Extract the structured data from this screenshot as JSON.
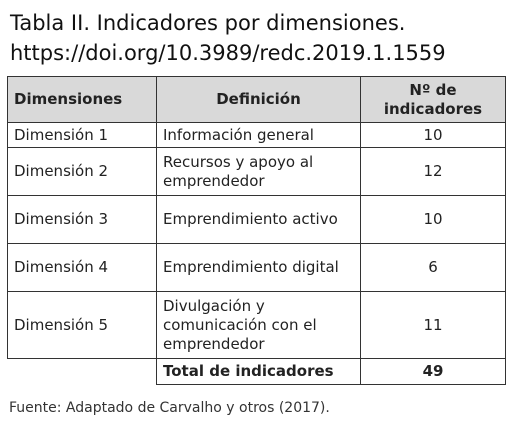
{
  "title": {
    "line1": "Tabla II. Indicadores por dimensiones.",
    "line2": "https://doi.org/10.3989/redc.2019.1.1559"
  },
  "table": {
    "headers": {
      "dimension": "Dimensiones",
      "definition": "Definición",
      "count_line1": "Nº de",
      "count_line2": "indicadores"
    },
    "rows": [
      {
        "dimension": "Dimensión 1",
        "definition": "Información general",
        "count": "10"
      },
      {
        "dimension": "Dimensión 2",
        "definition": "Recursos y apoyo al emprendedor",
        "count": "12"
      },
      {
        "dimension": "Dimensión 3",
        "definition": "Emprendimiento activo",
        "count": "10"
      },
      {
        "dimension": "Dimensión 4",
        "definition": "Emprendimiento digital",
        "count": "6"
      },
      {
        "dimension": "Dimensión 5",
        "definition": "Divulgación y comunicación con el emprendedor",
        "count": "11"
      }
    ],
    "total": {
      "label": "Total de indicadores",
      "count": "49"
    }
  },
  "source": "Fuente: Adaptado de Carvalho y otros (2017).",
  "colors": {
    "header_background": "#d9d9d9",
    "border": "#333333",
    "text": "#222222"
  }
}
